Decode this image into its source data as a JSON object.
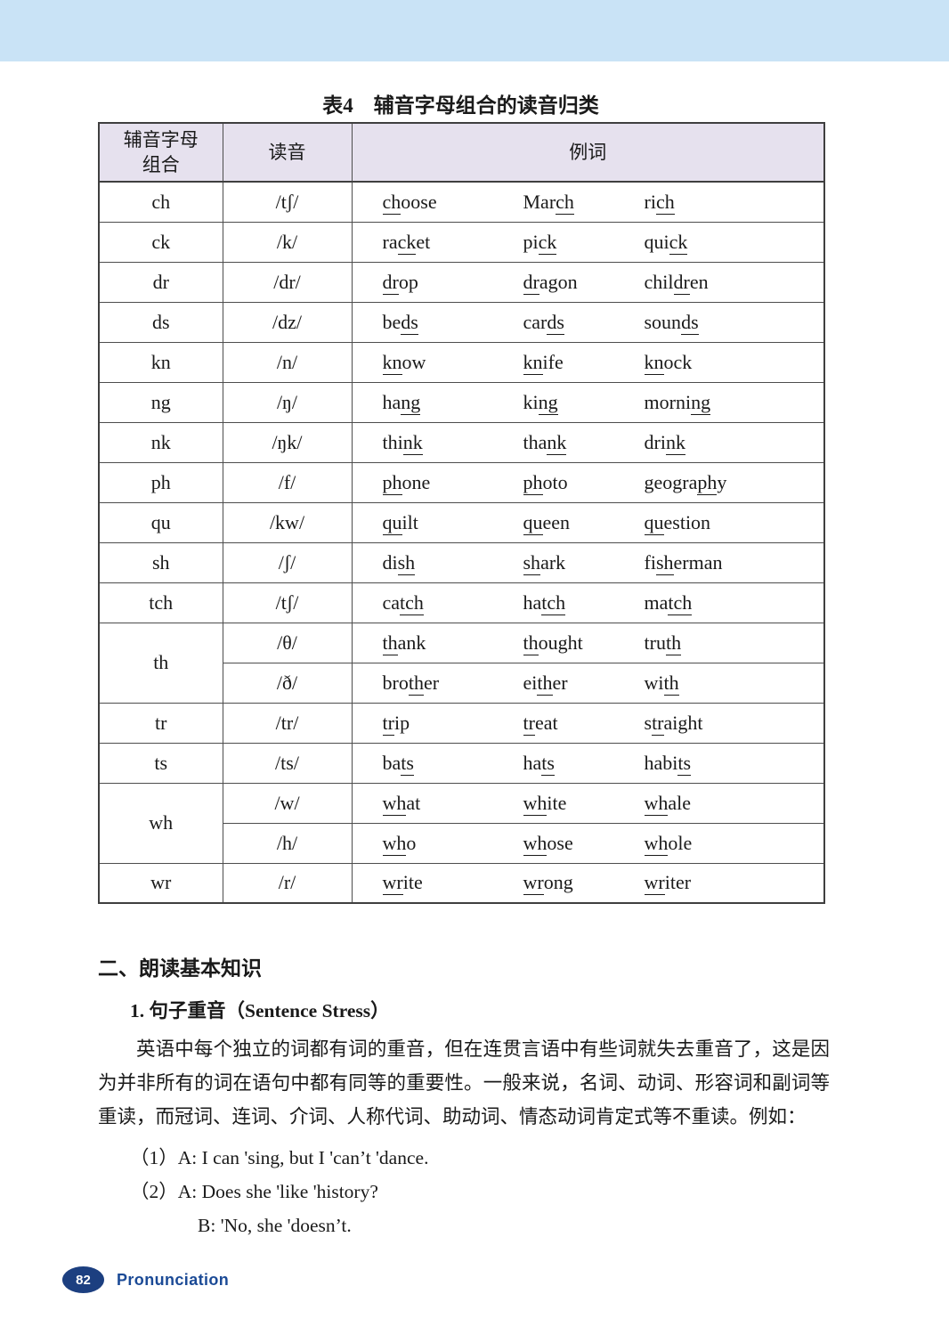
{
  "colors": {
    "top_bar": "#c9e3f6",
    "table_header_bg": "#e6e1ee",
    "table_border": "#3f3f3f",
    "footer_badge_blue": "#1c3f80",
    "footer_label_blue": "#1b4a96"
  },
  "table": {
    "title": "表4　辅音字母组合的读音归类",
    "headers": {
      "combo_line1": "辅音字母",
      "combo_line2": "组合",
      "sound": "读音",
      "examples": "例词"
    },
    "rows": [
      {
        "combo": "ch",
        "span": 1,
        "sound": "/tʃ/",
        "words": [
          [
            "",
            "ch",
            "oose"
          ],
          [
            "Mar",
            "ch",
            ""
          ],
          [
            "ri",
            "ch",
            ""
          ]
        ]
      },
      {
        "combo": "ck",
        "span": 1,
        "sound": "/k/",
        "words": [
          [
            "ra",
            "ck",
            "et"
          ],
          [
            "pi",
            "ck",
            ""
          ],
          [
            "qui",
            "ck",
            ""
          ]
        ]
      },
      {
        "combo": "dr",
        "span": 1,
        "sound": "/dr/",
        "words": [
          [
            "",
            "dr",
            "op"
          ],
          [
            "",
            "dr",
            "agon"
          ],
          [
            "chil",
            "dr",
            "en"
          ]
        ]
      },
      {
        "combo": "ds",
        "span": 1,
        "sound": "/dz/",
        "words": [
          [
            "be",
            "ds",
            ""
          ],
          [
            "car",
            "ds",
            ""
          ],
          [
            "soun",
            "ds",
            ""
          ]
        ]
      },
      {
        "combo": "kn",
        "span": 1,
        "sound": "/n/",
        "words": [
          [
            "",
            "kn",
            "ow"
          ],
          [
            "",
            "kn",
            "ife"
          ],
          [
            "",
            "kn",
            "ock"
          ]
        ]
      },
      {
        "combo": "ng",
        "span": 1,
        "sound": "/ŋ/",
        "words": [
          [
            "ha",
            "ng",
            ""
          ],
          [
            "ki",
            "ng",
            ""
          ],
          [
            "morni",
            "ng",
            ""
          ]
        ]
      },
      {
        "combo": "nk",
        "span": 1,
        "sound": "/ŋk/",
        "words": [
          [
            "thi",
            "nk",
            ""
          ],
          [
            "tha",
            "nk",
            ""
          ],
          [
            "dri",
            "nk",
            ""
          ]
        ]
      },
      {
        "combo": "ph",
        "span": 1,
        "sound": "/f/",
        "words": [
          [
            "",
            "ph",
            "one"
          ],
          [
            "",
            "ph",
            "oto"
          ],
          [
            "geogra",
            "ph",
            "y"
          ]
        ]
      },
      {
        "combo": "qu",
        "span": 1,
        "sound": "/kw/",
        "words": [
          [
            "",
            "qu",
            "ilt"
          ],
          [
            "",
            "qu",
            "een"
          ],
          [
            "",
            "qu",
            "estion"
          ]
        ]
      },
      {
        "combo": "sh",
        "span": 1,
        "sound": "/ʃ/",
        "words": [
          [
            "di",
            "sh",
            ""
          ],
          [
            "",
            "sh",
            "ark"
          ],
          [
            "fi",
            "sh",
            "erman"
          ]
        ]
      },
      {
        "combo": "tch",
        "span": 1,
        "sound": "/tʃ/",
        "words": [
          [
            "ca",
            "tch",
            ""
          ],
          [
            "ha",
            "tch",
            ""
          ],
          [
            "ma",
            "tch",
            ""
          ]
        ]
      },
      {
        "combo": "th",
        "span": 2,
        "sound": "/θ/",
        "words": [
          [
            "",
            "th",
            "ank"
          ],
          [
            "",
            "th",
            "ought"
          ],
          [
            "tru",
            "th",
            ""
          ]
        ]
      },
      {
        "combo": null,
        "span": 1,
        "sound": "/ð/",
        "words": [
          [
            "bro",
            "th",
            "er"
          ],
          [
            "ei",
            "th",
            "er"
          ],
          [
            "wi",
            "th",
            ""
          ]
        ]
      },
      {
        "combo": "tr",
        "span": 1,
        "sound": "/tr/",
        "words": [
          [
            "",
            "tr",
            "ip"
          ],
          [
            "",
            "tr",
            "eat"
          ],
          [
            "s",
            "tr",
            "aight"
          ]
        ]
      },
      {
        "combo": "ts",
        "span": 1,
        "sound": "/ts/",
        "words": [
          [
            "ba",
            "ts",
            ""
          ],
          [
            "ha",
            "ts",
            ""
          ],
          [
            "habi",
            "ts",
            ""
          ]
        ]
      },
      {
        "combo": "wh",
        "span": 2,
        "sound": "/w/",
        "words": [
          [
            "",
            "wh",
            "at"
          ],
          [
            "",
            "wh",
            "ite"
          ],
          [
            "",
            "wh",
            "ale"
          ]
        ]
      },
      {
        "combo": null,
        "span": 1,
        "sound": "/h/",
        "words": [
          [
            "",
            "wh",
            "o"
          ],
          [
            "",
            "wh",
            "ose"
          ],
          [
            "",
            "wh",
            "ole"
          ]
        ]
      },
      {
        "combo": "wr",
        "span": 1,
        "sound": "/r/",
        "words": [
          [
            "",
            "wr",
            "ite"
          ],
          [
            "",
            "wr",
            "ong"
          ],
          [
            "",
            "wr",
            "iter"
          ]
        ]
      }
    ]
  },
  "section": {
    "heading": "二、朗读基本知识",
    "subheading": "1. 句子重音（Sentence Stress）",
    "paragraph": "英语中每个独立的词都有词的重音，但在连贯言语中有些词就失去重音了，这是因为并非所有的词在语句中都有同等的重要性。一般来说，名词、动词、形容词和副词等重读，而冠词、连词、介词、人称代词、助动词、情态动词肯定式等不重读。例如：",
    "examples": [
      {
        "label": "（1）",
        "text": "A: I can 'sing, but I 'can’t 'dance."
      },
      {
        "label": "（2）",
        "text": "A: Does she 'like 'history?"
      },
      {
        "label": "",
        "text": "B: 'No, she 'doesn’t."
      }
    ]
  },
  "footer": {
    "page_number": "82",
    "label": "Pronunciation"
  }
}
